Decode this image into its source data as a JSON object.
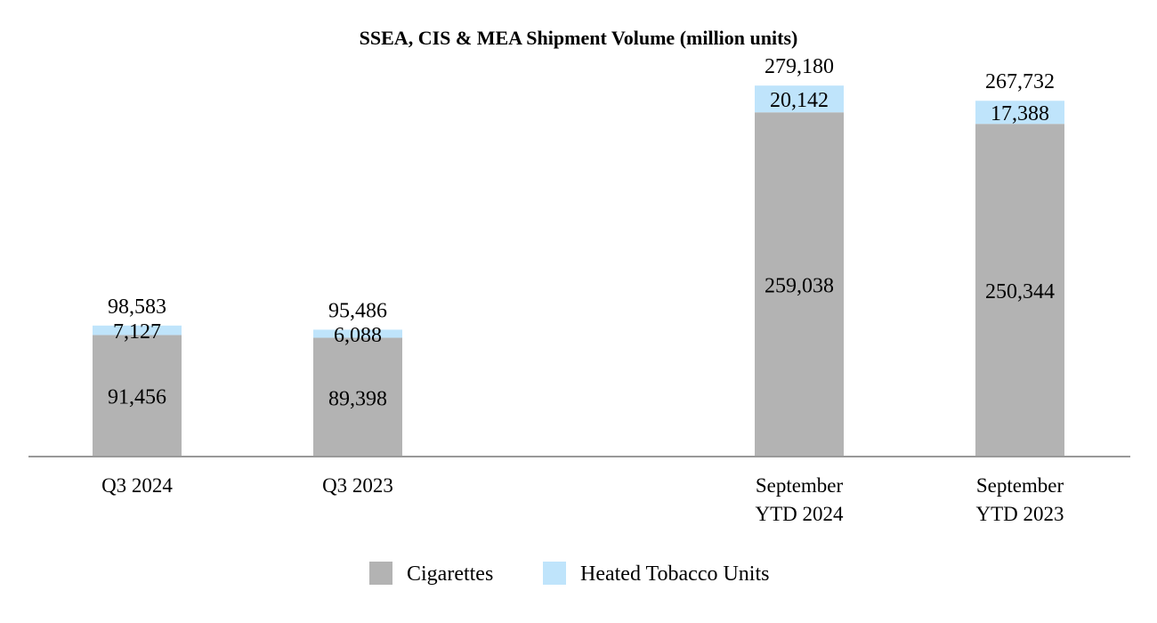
{
  "chart_data": {
    "type": "bar",
    "stacked": true,
    "title": "SSEA, CIS & MEA Shipment Volume (million units)",
    "xlabel": "",
    "ylabel": "",
    "categories": [
      [
        "Q3 2024"
      ],
      [
        "Q3 2023"
      ],
      [
        "September",
        "YTD 2024"
      ],
      [
        "September",
        "YTD 2023"
      ]
    ],
    "category_gap_after_index": 1,
    "series": [
      {
        "name": "Cigarettes",
        "color": "#b3b3b3",
        "values": [
          91456,
          89398,
          259038,
          250344
        ],
        "labels": [
          "91,456",
          "89,398",
          "259,038",
          "250,344"
        ]
      },
      {
        "name": "Heated Tobacco Units",
        "color": "#bfe4fb",
        "values": [
          7127,
          6088,
          20142,
          17388
        ],
        "labels": [
          "7,127",
          "6,088",
          "20,142",
          "17,388"
        ]
      }
    ],
    "totals": [
      98583,
      95486,
      279180,
      267732
    ],
    "total_labels": [
      "98,583",
      "95,486",
      "279,180",
      "267,732"
    ],
    "ylim": [
      0,
      290000
    ],
    "grid": false,
    "legend_position": "bottom-center",
    "axis_color": "#999999"
  }
}
